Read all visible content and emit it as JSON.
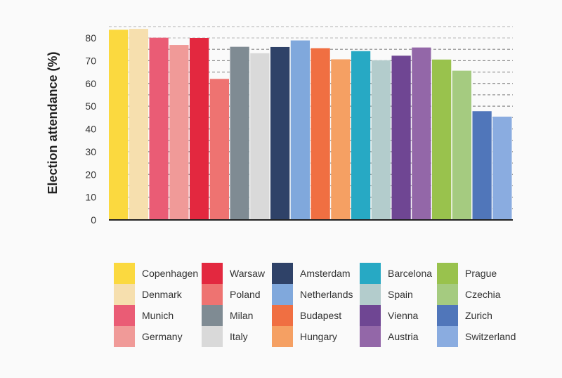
{
  "chart_data": {
    "type": "bar",
    "ylabel": "Election attendance (%)",
    "xlabel": "",
    "ylim": [
      0,
      85
    ],
    "yticks": [
      0,
      10,
      20,
      30,
      40,
      50,
      60,
      70,
      80
    ],
    "grid": true,
    "legend_position": "bottom",
    "categories": [
      "Copenhagen",
      "Denmark",
      "Munich",
      "Germany",
      "Warsaw",
      "Poland",
      "Milan",
      "Italy",
      "Amsterdam",
      "Netherlands",
      "Budapest",
      "Hungary",
      "Barcelona",
      "Spain",
      "Vienna",
      "Austria",
      "Prague",
      "Czechia",
      "Zurich",
      "Switzerland"
    ],
    "values": [
      83.6,
      84.0,
      80.1,
      76.9,
      80.0,
      62.0,
      76.1,
      73.3,
      76.0,
      78.9,
      75.5,
      70.6,
      74.2,
      70.2,
      72.2,
      75.8,
      70.5,
      65.6,
      47.8,
      45.4
    ],
    "colors": [
      "#fbd93f",
      "#f6dfae",
      "#ea5c75",
      "#f09a98",
      "#e3283f",
      "#ee7371",
      "#7f8b93",
      "#d9d9d9",
      "#2f4268",
      "#80a8dc",
      "#f06f42",
      "#f5a063",
      "#27a9c4",
      "#b3cccc",
      "#6f4693",
      "#9367a8",
      "#99c24d",
      "#a5cb80",
      "#5076ba",
      "#8aace0"
    ]
  }
}
